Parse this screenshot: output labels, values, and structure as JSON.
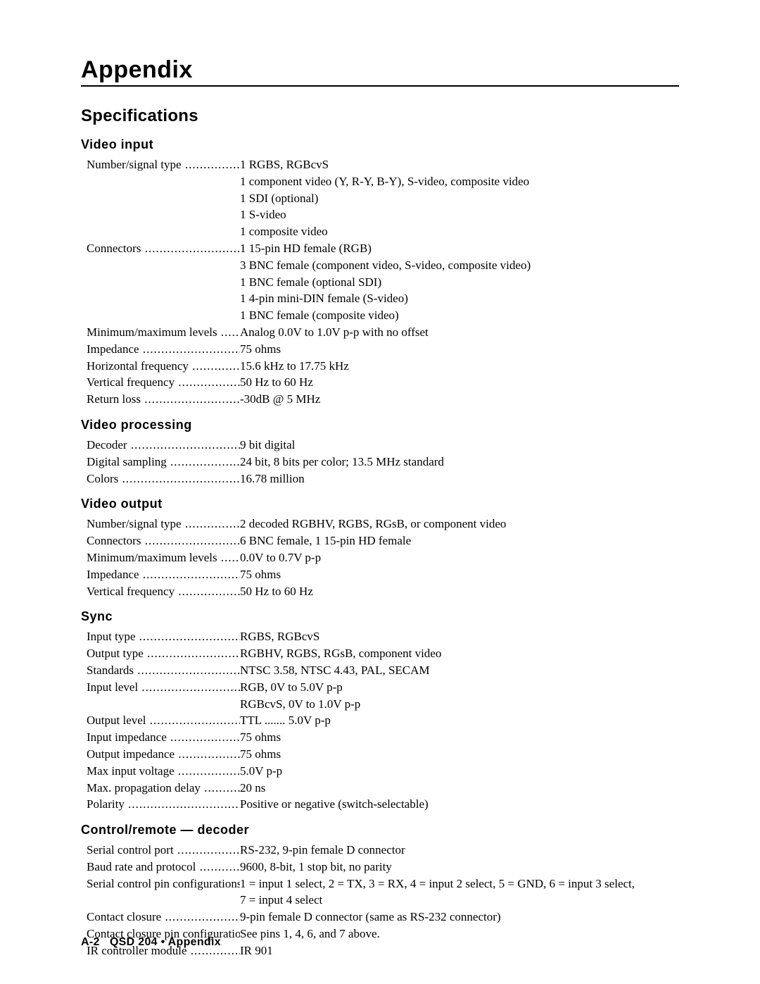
{
  "page": {
    "title": "Appendix",
    "subtitle": "Specifications",
    "footer_page": "A-2",
    "footer_text": "QSD 204 • Appendix"
  },
  "sections": [
    {
      "heading": "Video  input",
      "rows": [
        {
          "label": "Number/signal type",
          "dotted": true,
          "values": [
            "1 RGBS, RGBcvS",
            "1 component video (Y, R-Y, B-Y), S-video, composite video",
            "1 SDI (optional)",
            "1 S-video",
            "1 composite video"
          ]
        },
        {
          "label": "Connectors",
          "dotted": true,
          "values": [
            "1  15-pin HD female (RGB)",
            "3 BNC female (component video, S-video, composite video)",
            "1 BNC female (optional SDI)",
            "1  4-pin mini-DIN female (S-video)",
            "1 BNC female (composite video)"
          ]
        },
        {
          "label": "Minimum/maximum levels",
          "dotted": true,
          "values": [
            "Analog  0.0V to 1.0V p-p with no offset"
          ]
        },
        {
          "label": "Impedance",
          "dotted": true,
          "values": [
            "75 ohms"
          ]
        },
        {
          "label": "Horizontal frequency",
          "dotted": true,
          "values": [
            "15.6 kHz to 17.75 kHz"
          ]
        },
        {
          "label": "Vertical frequency",
          "dotted": true,
          "values": [
            "50 Hz to 60 Hz"
          ]
        },
        {
          "label": "Return loss",
          "dotted": true,
          "values": [
            "-30dB @ 5 MHz"
          ]
        }
      ]
    },
    {
      "heading": "Video  processing",
      "rows": [
        {
          "label": "Decoder",
          "dotted": true,
          "values": [
            "9 bit digital"
          ]
        },
        {
          "label": "Digital sampling",
          "dotted": true,
          "values": [
            "24 bit, 8 bits per color;  13.5 MHz standard"
          ]
        },
        {
          "label": "Colors",
          "dotted": true,
          "values": [
            "16.78 million"
          ]
        }
      ]
    },
    {
      "heading": "Video  output",
      "rows": [
        {
          "label": "Number/signal type",
          "dotted": true,
          "values": [
            "2 decoded RGBHV, RGBS, RGsB, or component video"
          ]
        },
        {
          "label": "Connectors",
          "dotted": true,
          "values": [
            "6 BNC female, 1  15-pin HD female"
          ]
        },
        {
          "label": "Minimum/maximum levels",
          "dotted": true,
          "values": [
            "0.0V to 0.7V p-p"
          ]
        },
        {
          "label": "Impedance",
          "dotted": true,
          "values": [
            "75 ohms"
          ]
        },
        {
          "label": "Vertical frequency",
          "dotted": true,
          "values": [
            "50 Hz to 60 Hz"
          ]
        }
      ]
    },
    {
      "heading": "Sync",
      "rows": [
        {
          "label": "Input type",
          "dotted": true,
          "values": [
            "RGBS, RGBcvS"
          ]
        },
        {
          "label": "Output type",
          "dotted": true,
          "values": [
            "RGBHV, RGBS, RGsB, component video"
          ]
        },
        {
          "label": "Standards",
          "dotted": true,
          "values": [
            "NTSC 3.58, NTSC 4.43, PAL, SECAM"
          ]
        },
        {
          "label": "Input level",
          "dotted": true,
          "values": [
            "RGB, 0V to 5.0V p-p",
            "RGBcvS, 0V to 1.0V p-p"
          ]
        },
        {
          "label": "Output level",
          "dotted": true,
          "values": [
            "TTL ....... 5.0V p-p"
          ]
        },
        {
          "label": "Input impedance",
          "dotted": true,
          "values": [
            "75 ohms"
          ]
        },
        {
          "label": "Output impedance",
          "dotted": true,
          "values": [
            "75 ohms"
          ]
        },
        {
          "label": "Max input voltage",
          "dotted": true,
          "values": [
            "5.0V p-p"
          ]
        },
        {
          "label": "Max. propagation delay",
          "dotted": true,
          "values": [
            "20 ns"
          ]
        },
        {
          "label": "Polarity",
          "dotted": true,
          "values": [
            "Positive or negative (switch-selectable)"
          ]
        }
      ]
    },
    {
      "heading": "Control/remote  —  decoder",
      "rows": [
        {
          "label": "Serial control port",
          "dotted": true,
          "values": [
            "RS-232, 9-pin female D connector"
          ]
        },
        {
          "label": "Baud rate and protocol",
          "dotted": true,
          "values": [
            "9600, 8-bit, 1 stop bit, no parity"
          ]
        },
        {
          "label": "Serial control pin configurations",
          "dotted": false,
          "values": [
            "1 = input 1 select, 2 = TX, 3 = RX, 4 = input 2 select, 5 = GND, 6 = input 3 select,",
            "7 = input 4 select"
          ]
        },
        {
          "label": "Contact closure",
          "dotted": true,
          "values": [
            "9-pin female D connector (same as RS-232 connector)"
          ]
        },
        {
          "label": "Contact closure pin configurations",
          "dotted": false,
          "values": [
            "See pins 1, 4, 6, and 7 above."
          ]
        },
        {
          "label": "IR controller module",
          "dotted": true,
          "values": [
            "IR 901"
          ]
        }
      ]
    }
  ]
}
